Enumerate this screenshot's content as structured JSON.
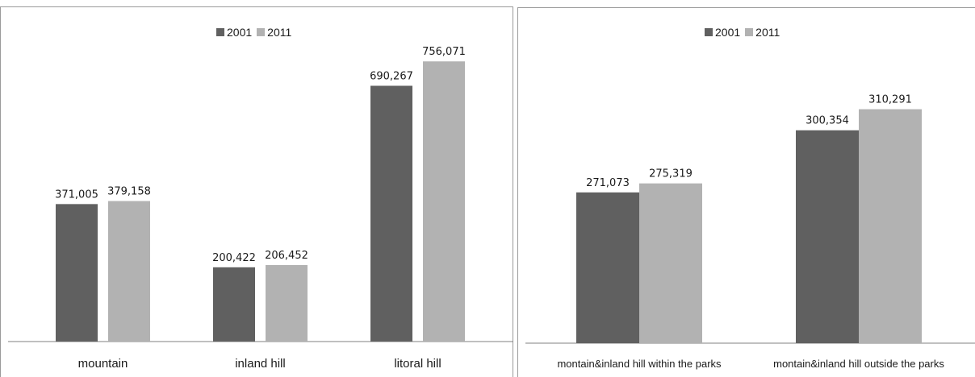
{
  "chart_data": [
    {
      "type": "bar",
      "categories": [
        "mountain",
        "inland hill",
        "litoral hill"
      ],
      "series": [
        {
          "name": "2001",
          "values": [
            371005,
            200422,
            690267
          ],
          "labels": [
            "371,005",
            "200,422",
            "690,267"
          ]
        },
        {
          "name": "2011",
          "values": [
            379158,
            206452,
            756071
          ],
          "labels": [
            "379,158",
            "206,452",
            "756,071"
          ]
        }
      ],
      "ylim": [
        0,
        900000
      ],
      "grid": false,
      "legend": "top-center"
    },
    {
      "type": "bar",
      "categories": [
        "montain&inland hill within the parks",
        "montain&inland hill outside the parks"
      ],
      "series": [
        {
          "name": "2001",
          "values": [
            271073,
            300354
          ],
          "labels": [
            "271,073",
            "300,354"
          ]
        },
        {
          "name": "2011",
          "values": [
            275319,
            310291
          ],
          "labels": [
            "275,319",
            "310,291"
          ]
        }
      ],
      "ylim": [
        200000,
        350000
      ],
      "grid": false,
      "legend": "top-center"
    }
  ],
  "colors": {
    "series_2001": "#606060",
    "series_2011": "#b2b2b2"
  }
}
